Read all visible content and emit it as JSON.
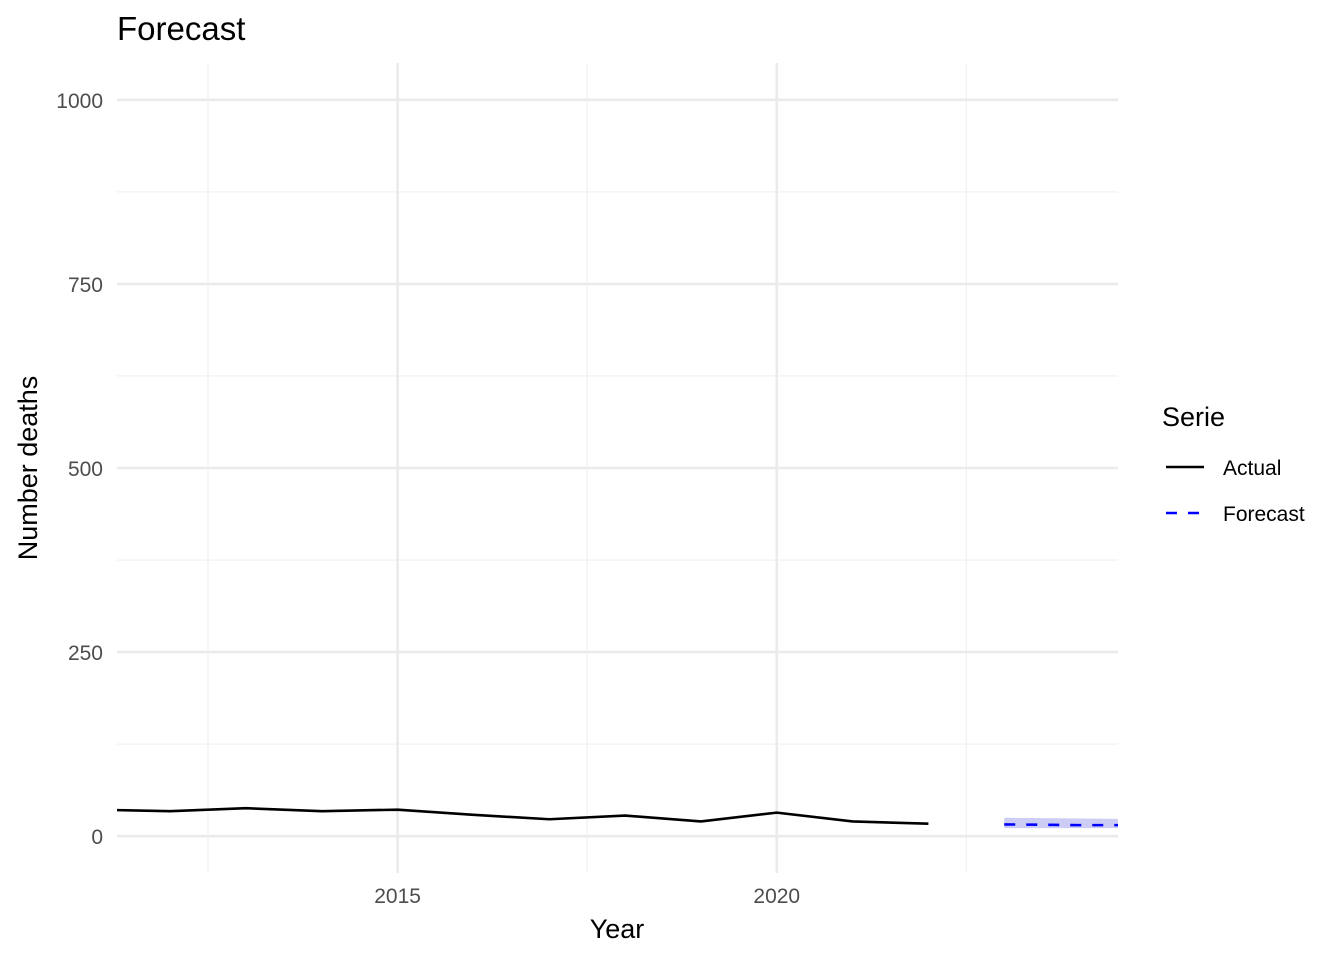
{
  "chart_data": {
    "type": "line",
    "title": "Forecast",
    "xlabel": "Year",
    "ylabel": "Number deaths",
    "xlim": [
      2011.3,
      2024.5
    ],
    "ylim": [
      -50,
      1050
    ],
    "x_ticks": [
      2015,
      2020
    ],
    "y_ticks": [
      0,
      250,
      500,
      750,
      1000
    ],
    "grid": true,
    "legend": {
      "title": "Serie",
      "position": "right"
    },
    "series": [
      {
        "name": "Actual",
        "style": "solid",
        "color": "#000000",
        "x": [
          2011,
          2012,
          2013,
          2014,
          2015,
          2016,
          2017,
          2018,
          2019,
          2020,
          2021,
          2022
        ],
        "y": [
          36,
          34,
          38,
          34,
          36,
          29,
          23,
          28,
          20,
          32,
          20,
          17
        ]
      },
      {
        "name": "Forecast",
        "style": "dashed",
        "color": "#0000ff",
        "x": [
          2023,
          2024,
          2025
        ],
        "y": [
          16,
          15,
          15
        ],
        "lower": [
          11,
          11,
          11
        ],
        "upper": [
          25,
          24,
          23
        ],
        "band_color": "#ccccf5"
      }
    ]
  }
}
